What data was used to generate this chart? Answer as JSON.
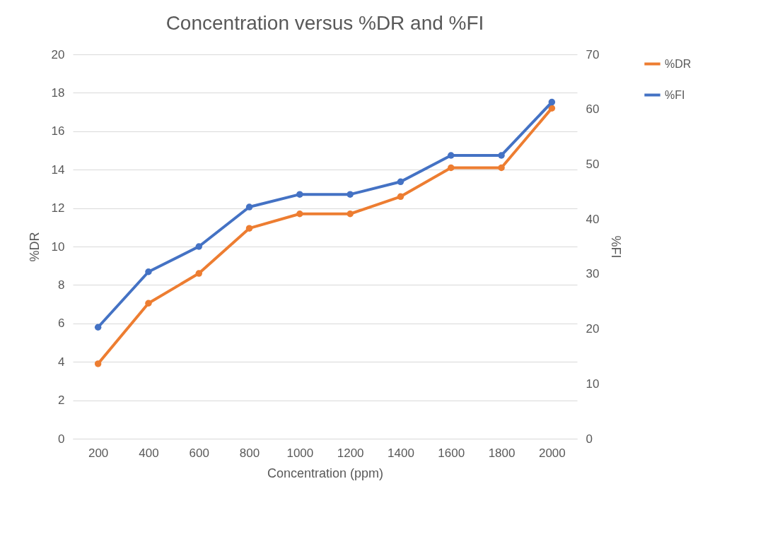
{
  "chart_data": {
    "type": "line",
    "title": "Concentration versus %DR and %FI",
    "xlabel": "Concentration (ppm)",
    "ylabel": "%DR",
    "y2label": "%FI",
    "categories": [
      "200",
      "400",
      "600",
      "800",
      "1000",
      "1200",
      "1400",
      "1600",
      "1800",
      "2000"
    ],
    "series": [
      {
        "name": "%DR",
        "color": "#ed7d31",
        "values": [
          3.9,
          7.05,
          8.6,
          10.95,
          11.7,
          11.7,
          12.6,
          14.1,
          14.1,
          17.2
        ]
      },
      {
        "name": "%FI",
        "color": "#4472c4",
        "axis": "y2",
        "values": [
          20.3,
          30.4,
          35.0,
          42.2,
          44.5,
          44.5,
          46.8,
          51.6,
          51.6,
          61.3
        ]
      }
    ],
    "ylim": [
      0,
      20
    ],
    "yticks": [
      0,
      2,
      4,
      6,
      8,
      10,
      12,
      14,
      16,
      18,
      20
    ],
    "y2lim": [
      0,
      70
    ],
    "y2ticks": [
      0,
      10,
      20,
      30,
      40,
      50,
      60,
      70
    ],
    "grid": "y",
    "legend": "right",
    "marker": "circle",
    "line_style": "solid"
  }
}
